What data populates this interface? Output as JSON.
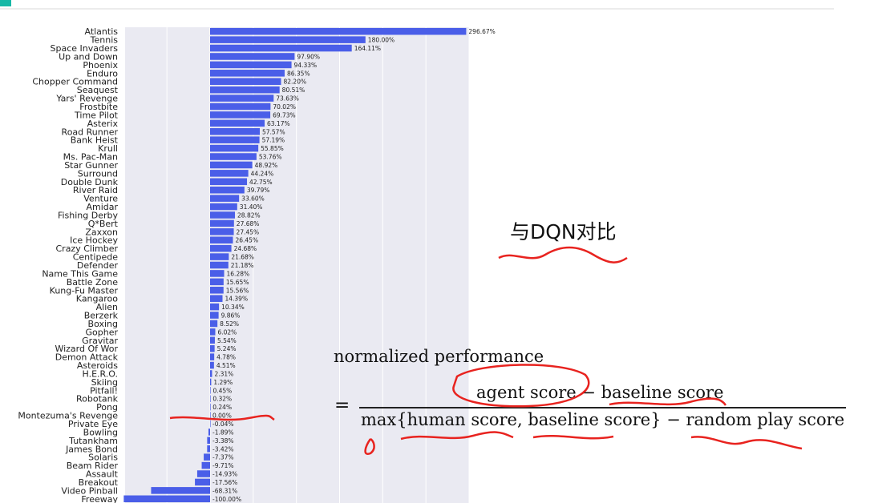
{
  "chart_data": {
    "type": "bar",
    "orientation": "horizontal",
    "categories": [
      "Atlantis",
      "Tennis",
      "Space Invaders",
      "Up and Down",
      "Phoenix",
      "Enduro",
      "Chopper Command",
      "Seaquest",
      "Yars' Revenge",
      "Frostbite",
      "Time Pilot",
      "Asterix",
      "Road Runner",
      "Bank Heist",
      "Krull",
      "Ms. Pac-Man",
      "Star Gunner",
      "Surround",
      "Double Dunk",
      "River Raid",
      "Venture",
      "Amidar",
      "Fishing Derby",
      "Q*Bert",
      "Zaxxon",
      "Ice Hockey",
      "Crazy Climber",
      "Centipede",
      "Defender",
      "Name This Game",
      "Battle Zone",
      "Kung-Fu Master",
      "Kangaroo",
      "Alien",
      "Berzerk",
      "Boxing",
      "Gopher",
      "Gravitar",
      "Wizard Of Wor",
      "Demon Attack",
      "Asteroids",
      "H.E.R.O.",
      "Skiing",
      "Pitfall!",
      "Robotank",
      "Pong",
      "Montezuma's Revenge",
      "Private Eye",
      "Bowling",
      "Tutankham",
      "James Bond",
      "Solaris",
      "Beam Rider",
      "Assault",
      "Breakout",
      "Video Pinball",
      "Freeway"
    ],
    "values": [
      296.67,
      180.0,
      164.11,
      97.9,
      94.33,
      86.35,
      82.2,
      80.51,
      73.63,
      70.02,
      69.73,
      63.17,
      57.57,
      57.19,
      55.85,
      53.76,
      48.92,
      44.24,
      42.75,
      39.79,
      33.6,
      31.4,
      28.82,
      27.68,
      27.45,
      26.45,
      24.68,
      21.68,
      21.18,
      16.28,
      15.65,
      15.56,
      14.39,
      10.34,
      9.86,
      8.52,
      6.02,
      5.54,
      5.24,
      4.78,
      4.51,
      2.31,
      1.29,
      0.45,
      0.32,
      0.24,
      0.0,
      -0.04,
      -1.89,
      -3.38,
      -3.42,
      -7.37,
      -9.71,
      -14.93,
      -17.56,
      -68.31,
      -100.0
    ],
    "labels": [
      "296.67%",
      "180.00%",
      "164.11%",
      "97.90%",
      "94.33%",
      "86.35%",
      "82.20%",
      "80.51%",
      "73.63%",
      "70.02%",
      "69.73%",
      "63.17%",
      "57.57%",
      "57.19%",
      "55.85%",
      "53.76%",
      "48.92%",
      "44.24%",
      "42.75%",
      "39.79%",
      "33.60%",
      "31.40%",
      "28.82%",
      "27.68%",
      "27.45%",
      "26.45%",
      "24.68%",
      "21.68%",
      "21.18%",
      "16.28%",
      "15.65%",
      "15.56%",
      "14.39%",
      "10.34%",
      "9.86%",
      "8.52%",
      "6.02%",
      "5.54%",
      "5.24%",
      "4.78%",
      "4.51%",
      "2.31%",
      "1.29%",
      "0.45%",
      "0.32%",
      "0.24%",
      "0.00%",
      "-0.04%",
      "-1.89%",
      "-3.38%",
      "-3.42%",
      "-7.37%",
      "-9.71%",
      "-14.93%",
      "-17.56%",
      "-68.31%",
      "-100.00%"
    ],
    "xlim": [
      -100,
      300
    ],
    "grid": true,
    "colors": {
      "bar": "#4a5ee8",
      "plot_bg": "#eaeaf2",
      "grid": "#ffffff",
      "text": "#222222"
    }
  },
  "annotations": {
    "dqn_note": "与DQN对比",
    "formula_label": "normalized performance",
    "formula_equals": "=",
    "formula_numerator": "agent score  − baseline score",
    "formula_denominator": "max{human score, baseline score}  − random play score"
  },
  "colors": {
    "ink": "#e8231f",
    "accent_bar": "#17b8a6"
  }
}
